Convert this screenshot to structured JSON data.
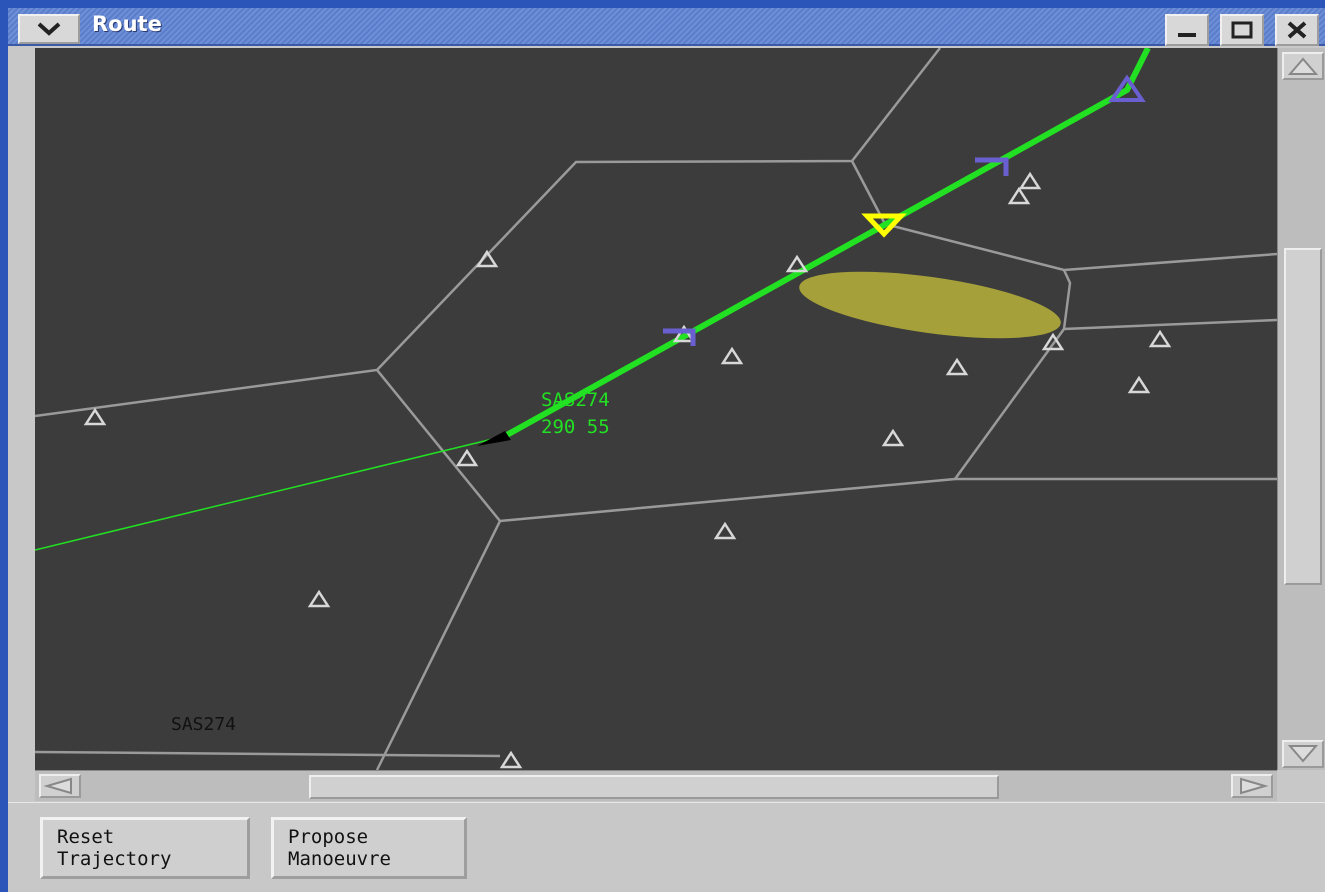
{
  "window": {
    "title": "Route",
    "menu_icon": "chevron-down-icon",
    "controls": [
      "minimize-icon",
      "maximize-icon",
      "close-icon"
    ]
  },
  "map": {
    "aircraft_label_callsign": "SAS274",
    "aircraft_label_data": "290 55",
    "bottom_label": "SAS274",
    "colors": {
      "background": "#3c3c3c",
      "sector_lines": "#9a9a9a",
      "route": "#22e022",
      "past_track": "#22e022",
      "waypoint_marker": "#6a5fd0",
      "active_waypoint": "#ffff00",
      "weather_area": "#b8b23a",
      "beacon": "#d8d8d8"
    }
  },
  "buttons": {
    "reset": {
      "line1": "Reset",
      "line2": "Trajectory"
    },
    "propose": {
      "line1": "Propose",
      "line2": "Manoeuvre"
    }
  }
}
